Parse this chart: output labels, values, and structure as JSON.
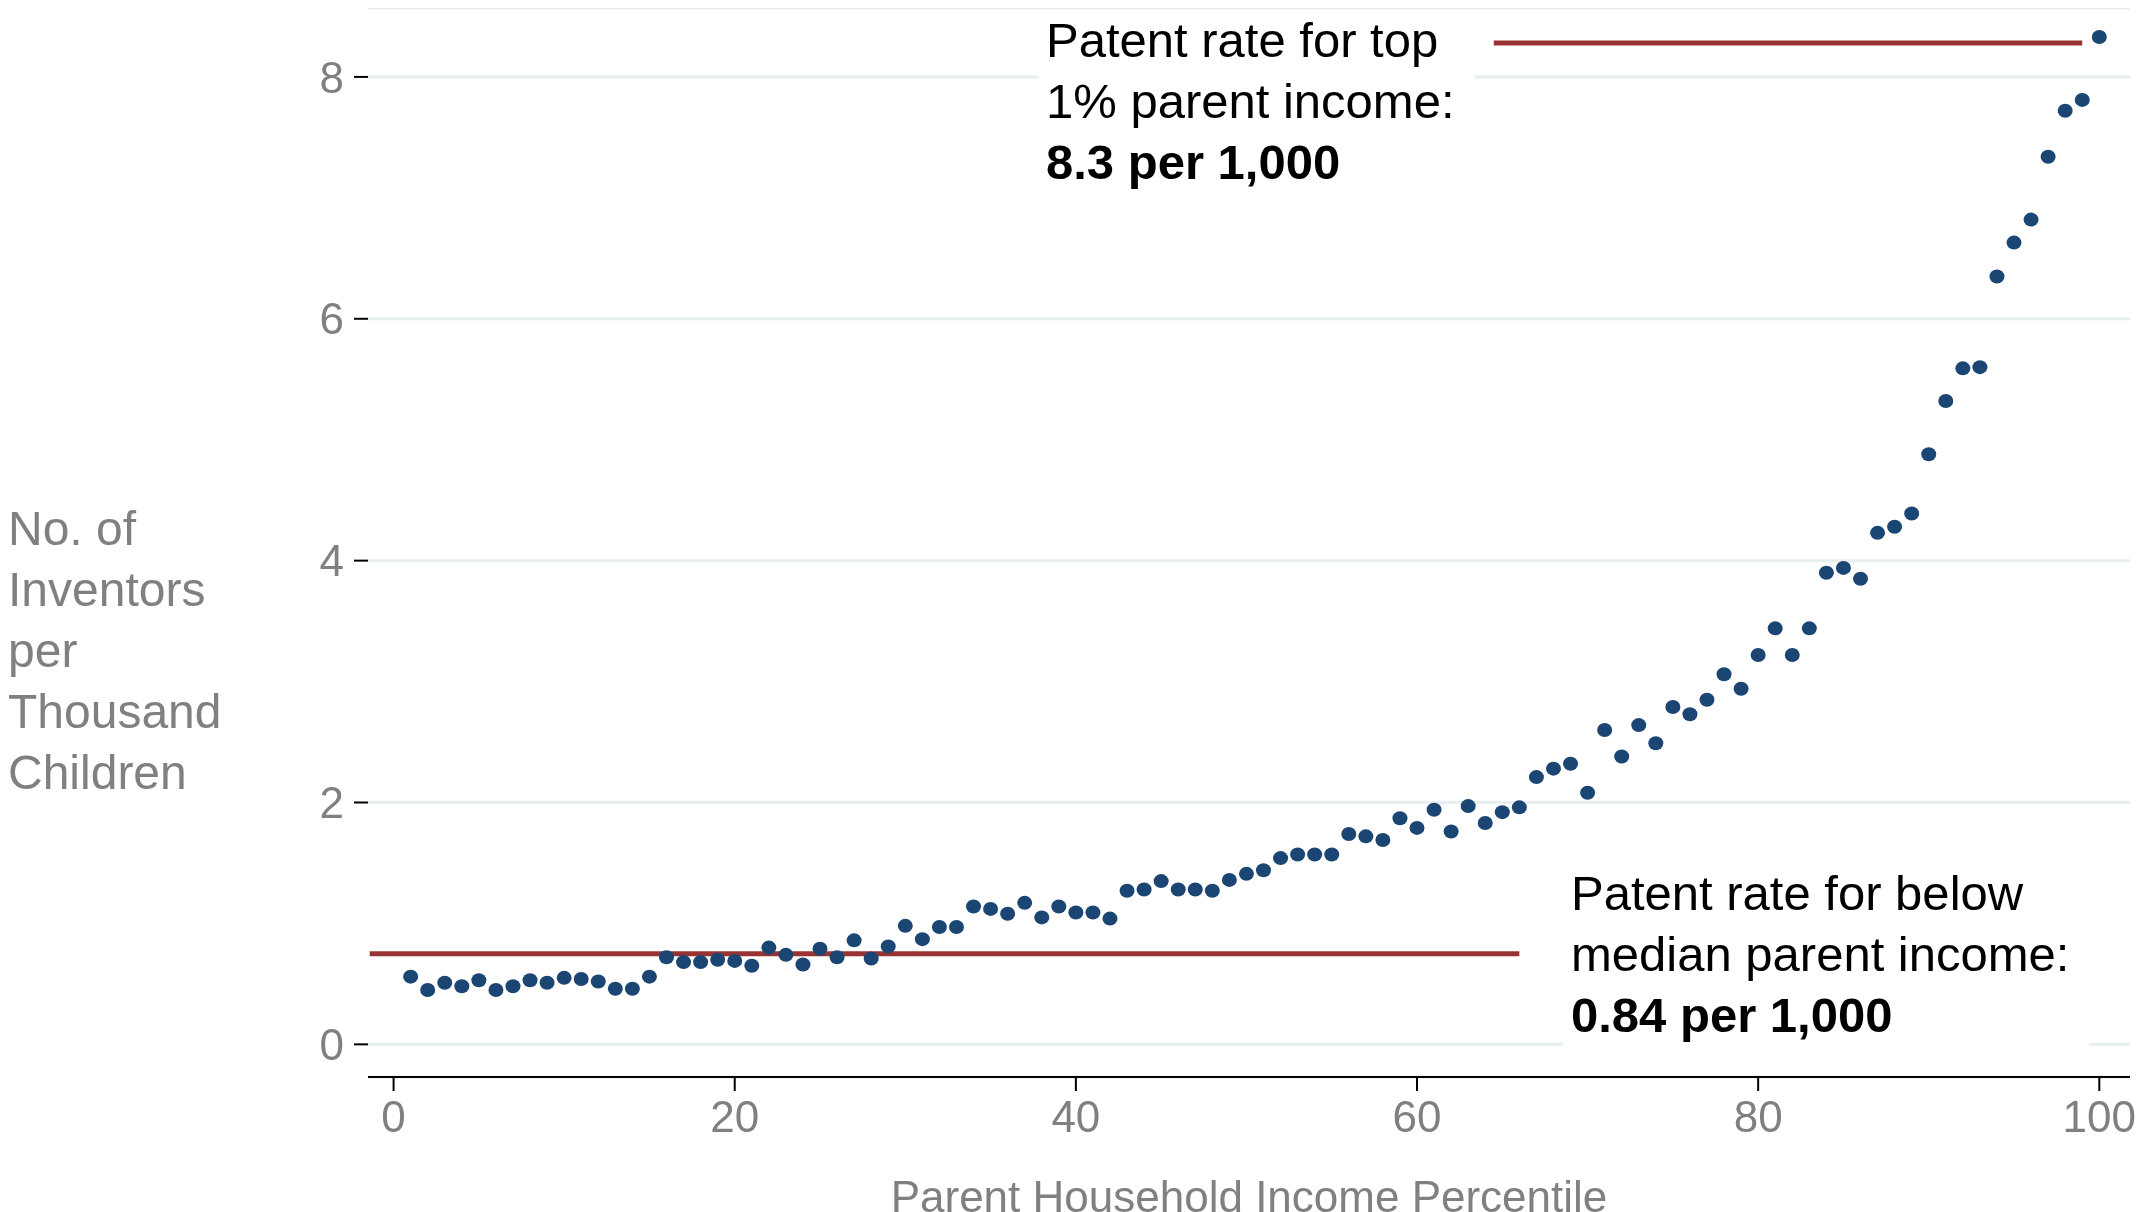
{
  "chart_data": {
    "type": "scatter",
    "xlabel": "Parent Household Income Percentile",
    "ylabel": "No. of Inventors per Thousand Children",
    "x": [
      1,
      2,
      3,
      4,
      5,
      6,
      7,
      8,
      9,
      10,
      11,
      12,
      13,
      14,
      15,
      16,
      17,
      18,
      19,
      20,
      21,
      22,
      23,
      24,
      25,
      26,
      27,
      28,
      29,
      30,
      31,
      32,
      33,
      34,
      35,
      36,
      37,
      38,
      39,
      40,
      41,
      42,
      43,
      44,
      45,
      46,
      47,
      48,
      49,
      50,
      51,
      52,
      53,
      54,
      55,
      56,
      57,
      58,
      59,
      60,
      61,
      62,
      63,
      64,
      65,
      66,
      67,
      68,
      69,
      70,
      71,
      72,
      73,
      74,
      75,
      76,
      77,
      78,
      79,
      80,
      81,
      82,
      83,
      84,
      85,
      86,
      87,
      88,
      89,
      90,
      91,
      92,
      93,
      94,
      95,
      96,
      97,
      98,
      99,
      100
    ],
    "series": [
      {
        "marker": "circle",
        "color": "#1b4673",
        "values": [
          0.56,
          0.45,
          0.51,
          0.48,
          0.53,
          0.45,
          0.48,
          0.53,
          0.51,
          0.55,
          0.54,
          0.52,
          0.46,
          0.46,
          0.56,
          0.72,
          0.68,
          0.68,
          0.7,
          0.69,
          0.65,
          0.8,
          0.74,
          0.66,
          0.79,
          0.72,
          0.86,
          0.71,
          0.81,
          0.98,
          0.87,
          0.97,
          0.97,
          1.14,
          1.12,
          1.08,
          1.17,
          1.05,
          1.14,
          1.09,
          1.09,
          1.04,
          1.27,
          1.28,
          1.35,
          1.28,
          1.28,
          1.27,
          1.36,
          1.41,
          1.44,
          1.54,
          1.57,
          1.57,
          1.57,
          1.74,
          1.72,
          1.69,
          1.87,
          1.79,
          1.94,
          1.76,
          1.97,
          1.83,
          1.92,
          1.96,
          2.21,
          2.28,
          2.32,
          2.08,
          2.6,
          2.38,
          2.64,
          2.49,
          2.79,
          2.73,
          2.85,
          3.06,
          2.94,
          3.22,
          3.44,
          3.22,
          3.44,
          3.9,
          3.94,
          3.85,
          4.23,
          4.28,
          4.39,
          4.88,
          5.32,
          5.59,
          5.6,
          6.35,
          6.63,
          6.82,
          7.34,
          7.72,
          7.81,
          8.33
        ]
      },
      {
        "type": "line",
        "marker": "none",
        "color": "#993333",
        "x": [
          -1.4,
          66
        ],
        "values": [
          0.75,
          0.75
        ]
      },
      {
        "type": "line",
        "marker": "none",
        "color": "#993333",
        "x": [
          64.5,
          99
        ],
        "values": [
          8.28,
          8.28
        ]
      }
    ],
    "annotations": [
      "Patent rate for top\n1% parent income:\n8.3 per 1,000",
      "Patent rate for below\nmedian parent income:\n0.84 per 1,000"
    ],
    "xlim": [
      -1.5,
      101.8
    ],
    "ylim": [
      -0.27,
      8.57
    ],
    "xticks": [
      0,
      20,
      40,
      60,
      80,
      100
    ],
    "yticks": [
      0,
      2,
      4,
      6,
      8
    ],
    "grid": "y",
    "line_style": "solid"
  }
}
